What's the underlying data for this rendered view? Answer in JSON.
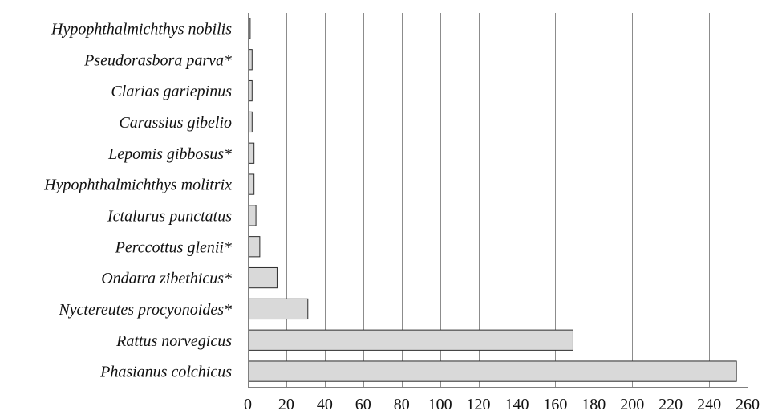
{
  "chart_data": {
    "type": "bar",
    "orientation": "horizontal",
    "categories": [
      "Hypophthalmichthys nobilis",
      "Pseudorasbora parva*",
      "Clarias gariepinus",
      "Carassius gibelio",
      "Lepomis gibbosus*",
      "Hypophthalmichthys molitrix",
      "Ictalurus punctatus",
      "Perccottus glenii*",
      "Ondatra zibethicus*",
      "Nyctereutes procyonoides*",
      "Rattus norvegicus",
      "Phasianus colchicus"
    ],
    "values": [
      1,
      2,
      2,
      2,
      3,
      3,
      4,
      6,
      15,
      31,
      169,
      254
    ],
    "xlim": [
      0,
      260
    ],
    "xticks": [
      0,
      20,
      40,
      60,
      80,
      100,
      120,
      140,
      160,
      180,
      200,
      220,
      240,
      260
    ],
    "grid": "vertical",
    "legend": "none",
    "title": "",
    "xlabel": "",
    "ylabel": "",
    "colors": {
      "bar_fill": "#d9d9d9",
      "bar_stroke": "#2b2b2b",
      "grid": "#8c8c8c"
    }
  }
}
